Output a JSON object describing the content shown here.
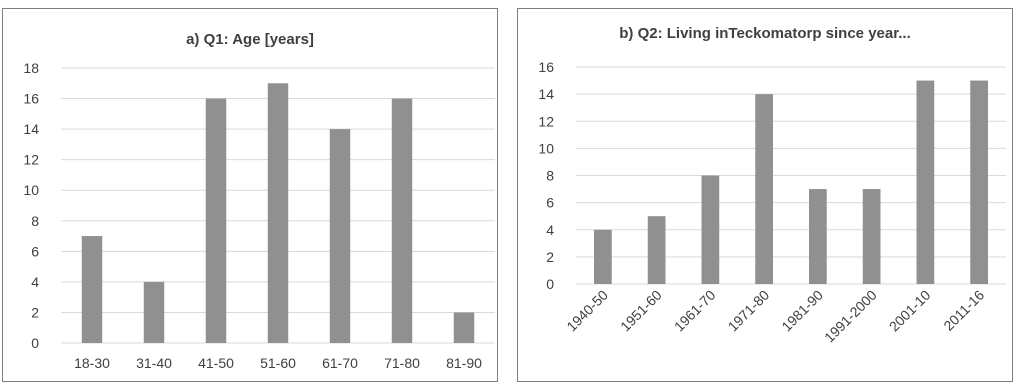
{
  "chart_data": [
    {
      "type": "bar",
      "title": "a) Q1: Age [years]",
      "categories": [
        "18-30",
        "31-40",
        "41-50",
        "51-60",
        "61-70",
        "71-80",
        "81-90"
      ],
      "values": [
        7,
        4,
        16,
        17,
        14,
        16,
        2
      ],
      "ylim": [
        0,
        18
      ],
      "yticks": [
        0,
        2,
        4,
        6,
        8,
        10,
        12,
        14,
        16,
        18
      ],
      "grid": true,
      "bar_color": "#909090"
    },
    {
      "type": "bar",
      "title": "b) Q2: Living inTeckomatorp since year...",
      "categories": [
        "1940-50",
        "1951-60",
        "1961-70",
        "1971-80",
        "1981-90",
        "1991-2000",
        "2001-10",
        "2011-16"
      ],
      "values": [
        4,
        5,
        8,
        14,
        7,
        7,
        15,
        15
      ],
      "ylim": [
        0,
        16
      ],
      "yticks": [
        0,
        2,
        4,
        6,
        8,
        10,
        12,
        14,
        16
      ],
      "grid": true,
      "bar_color": "#909090"
    }
  ]
}
